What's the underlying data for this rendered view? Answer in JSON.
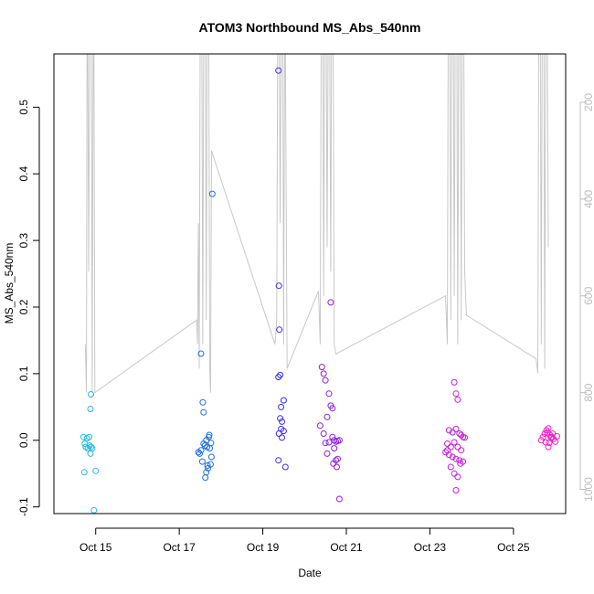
{
  "chart_data": {
    "type": "scatter",
    "title": "ATOM3 Northbound MS_Abs_540nm",
    "xlabel": "Date",
    "ylabel": "MS_Abs_540nm",
    "xlim": [
      "2017-10-14T00:00",
      "2017-10-26T06:00"
    ],
    "ylim": [
      -0.11,
      0.58
    ],
    "y2lim_reversed": [
      100,
      1050
    ],
    "x_ticks": [
      {
        "date": "2017-10-15",
        "label": "Oct 15"
      },
      {
        "date": "2017-10-17",
        "label": "Oct 17"
      },
      {
        "date": "2017-10-19",
        "label": "Oct 19"
      },
      {
        "date": "2017-10-21",
        "label": "Oct 21"
      },
      {
        "date": "2017-10-23",
        "label": "Oct 23"
      },
      {
        "date": "2017-10-25",
        "label": "Oct 25"
      }
    ],
    "y_ticks": [
      -0.1,
      0.0,
      0.1,
      0.2,
      0.3,
      0.4,
      0.5
    ],
    "y_tick_labels": [
      "-0.1",
      "0.0",
      "0.1",
      "0.2",
      "0.3",
      "0.4",
      "0.5"
    ],
    "y2_ticks": [
      200,
      400,
      600,
      800,
      1000
    ],
    "y2_tick_labels": [
      "200",
      "400",
      "600",
      "800",
      "1000"
    ],
    "grid": false,
    "colors": {
      "flight1": "#29b6e8",
      "flight2": "#1f6fe0",
      "flight3": "#3a2ee8",
      "flight4": "#8e1ee0",
      "flight5": "#c51ed8",
      "flight6": "#ef1ec8",
      "altitude_line": "#c8c8c8",
      "axis": "#000000",
      "right_axis": "#bdbdbd"
    },
    "series": [
      {
        "color_key": "flight1",
        "points": [
          [
            "2017-10-14T17:00",
            0.005
          ],
          [
            "2017-10-14T17:45",
            -0.005
          ],
          [
            "2017-10-14T18:15",
            -0.01
          ],
          [
            "2017-10-14T19:00",
            0.003
          ],
          [
            "2017-10-14T19:30",
            -0.012
          ],
          [
            "2017-10-14T20:15",
            0.005
          ],
          [
            "2017-10-14T20:30",
            -0.008
          ],
          [
            "2017-10-14T21:00",
            -0.02
          ],
          [
            "2017-10-14T21:15",
            -0.01
          ],
          [
            "2017-10-14T22:00",
            -0.012
          ],
          [
            "2017-10-14T17:30",
            -0.048
          ],
          [
            "2017-10-15T00:00",
            -0.046
          ],
          [
            "2017-10-14T21:00",
            0.047
          ],
          [
            "2017-10-14T21:15",
            0.069
          ],
          [
            "2017-10-14T23:00",
            -0.105
          ]
        ]
      },
      {
        "color_key": "flight2",
        "points": [
          [
            "2017-10-17T12:30",
            0.13
          ],
          [
            "2017-10-17T13:30",
            0.057
          ],
          [
            "2017-10-17T14:00",
            0.042
          ],
          [
            "2017-10-17T19:00",
            0.37
          ],
          [
            "2017-10-17T11:00",
            -0.018
          ],
          [
            "2017-10-17T11:45",
            -0.02
          ],
          [
            "2017-10-17T12:30",
            -0.015
          ],
          [
            "2017-10-17T13:15",
            -0.032
          ],
          [
            "2017-10-17T14:00",
            -0.005
          ],
          [
            "2017-10-17T14:45",
            -0.008
          ],
          [
            "2017-10-17T15:30",
            0.0
          ],
          [
            "2017-10-17T16:00",
            -0.01
          ],
          [
            "2017-10-17T16:30",
            -0.042
          ],
          [
            "2017-10-17T17:00",
            0.005
          ],
          [
            "2017-10-17T17:30",
            -0.012
          ],
          [
            "2017-10-17T18:00",
            -0.036
          ],
          [
            "2017-10-17T18:30",
            -0.025
          ],
          [
            "2017-10-17T15:00",
            -0.056
          ],
          [
            "2017-10-17T15:30",
            -0.048
          ],
          [
            "2017-10-17T16:15",
            -0.038
          ],
          [
            "2017-10-17T17:15",
            0.008
          ],
          [
            "2017-10-17T18:15",
            -0.004
          ]
        ]
      },
      {
        "color_key": "flight3",
        "points": [
          [
            "2017-10-19T09:00",
            0.555
          ],
          [
            "2017-10-19T09:15",
            0.232
          ],
          [
            "2017-10-19T09:30",
            0.166
          ],
          [
            "2017-10-19T10:00",
            0.098
          ],
          [
            "2017-10-19T09:00",
            0.095
          ],
          [
            "2017-10-19T12:00",
            0.06
          ],
          [
            "2017-10-19T10:30",
            0.05
          ],
          [
            "2017-10-19T10:00",
            0.033
          ],
          [
            "2017-10-19T11:00",
            0.028
          ],
          [
            "2017-10-19T10:30",
            0.017
          ],
          [
            "2017-10-19T12:00",
            0.014
          ],
          [
            "2017-10-19T09:15",
            0.01
          ],
          [
            "2017-10-19T11:00",
            0.004
          ],
          [
            "2017-10-19T09:00",
            -0.03
          ],
          [
            "2017-10-19T13:00",
            -0.04
          ]
        ]
      },
      {
        "color_key": "flight4",
        "points": [
          [
            "2017-10-20T15:00",
            0.207
          ],
          [
            "2017-10-20T10:00",
            0.11
          ],
          [
            "2017-10-20T11:00",
            0.1
          ],
          [
            "2017-10-20T12:00",
            0.09
          ],
          [
            "2017-10-20T14:00",
            0.07
          ],
          [
            "2017-10-20T15:00",
            0.052
          ],
          [
            "2017-10-20T16:00",
            0.048
          ],
          [
            "2017-10-20T13:00",
            0.035
          ],
          [
            "2017-10-20T09:00",
            0.022
          ],
          [
            "2017-10-20T11:00",
            0.01
          ],
          [
            "2017-10-20T16:00",
            0.005
          ],
          [
            "2017-10-20T17:00",
            0.0
          ],
          [
            "2017-10-20T18:00",
            -0.002
          ],
          [
            "2017-10-20T19:00",
            -0.001
          ],
          [
            "2017-10-20T20:00",
            0.0
          ],
          [
            "2017-10-20T14:00",
            -0.003
          ],
          [
            "2017-10-20T12:00",
            -0.004
          ],
          [
            "2017-10-20T17:00",
            -0.012
          ],
          [
            "2017-10-20T13:00",
            -0.02
          ],
          [
            "2017-10-20T18:00",
            -0.03
          ],
          [
            "2017-10-20T19:00",
            -0.028
          ],
          [
            "2017-10-20T16:30",
            -0.035
          ],
          [
            "2017-10-20T18:30",
            -0.04
          ],
          [
            "2017-10-20T20:00",
            -0.088
          ]
        ]
      },
      {
        "color_key": "flight5",
        "points": [
          [
            "2017-10-23T14:00",
            0.087
          ],
          [
            "2017-10-23T15:00",
            0.07
          ],
          [
            "2017-10-23T16:00",
            0.061
          ],
          [
            "2017-10-23T11:00",
            0.015
          ],
          [
            "2017-10-23T13:00",
            0.012
          ],
          [
            "2017-10-23T15:00",
            0.017
          ],
          [
            "2017-10-23T17:00",
            0.01
          ],
          [
            "2017-10-23T18:00",
            0.008
          ],
          [
            "2017-10-23T19:00",
            0.005
          ],
          [
            "2017-10-23T20:00",
            0.004
          ],
          [
            "2017-10-23T10:00",
            -0.005
          ],
          [
            "2017-10-23T12:00",
            -0.01
          ],
          [
            "2017-10-23T14:00",
            -0.003
          ],
          [
            "2017-10-23T16:00",
            -0.01
          ],
          [
            "2017-10-23T18:00",
            -0.015
          ],
          [
            "2017-10-23T09:00",
            -0.018
          ],
          [
            "2017-10-23T11:00",
            -0.022
          ],
          [
            "2017-10-23T13:00",
            -0.025
          ],
          [
            "2017-10-23T15:00",
            -0.028
          ],
          [
            "2017-10-23T17:00",
            -0.03
          ],
          [
            "2017-10-23T19:00",
            -0.032
          ],
          [
            "2017-10-23T12:00",
            -0.04
          ],
          [
            "2017-10-23T14:00",
            -0.05
          ],
          [
            "2017-10-23T16:00",
            -0.055
          ],
          [
            "2017-10-23T15:00",
            -0.075
          ],
          [
            "2017-10-23T10:00",
            -0.015
          ],
          [
            "2017-10-23T17:30",
            -0.035
          ]
        ]
      },
      {
        "color_key": "flight6",
        "points": [
          [
            "2017-10-25T16:00",
            0.0
          ],
          [
            "2017-10-25T17:00",
            0.005
          ],
          [
            "2017-10-25T18:00",
            0.01
          ],
          [
            "2017-10-25T19:00",
            0.015
          ],
          [
            "2017-10-25T20:00",
            0.018
          ],
          [
            "2017-10-25T21:00",
            0.008
          ],
          [
            "2017-10-25T22:00",
            0.005
          ],
          [
            "2017-10-25T23:00",
            0.002
          ],
          [
            "2017-10-26T00:00",
            -0.002
          ],
          [
            "2017-10-25T18:30",
            -0.003
          ],
          [
            "2017-10-25T19:30",
            0.012
          ],
          [
            "2017-10-25T20:30",
            -0.004
          ],
          [
            "2017-10-25T21:30",
            0.004
          ],
          [
            "2017-10-25T22:30",
            0.01
          ],
          [
            "2017-10-25T20:00",
            -0.01
          ],
          [
            "2017-10-26T01:00",
            0.006
          ]
        ]
      }
    ],
    "altitude_line": {
      "axis": "right",
      "points": [
        [
          "2017-10-14T18:00",
          700
        ],
        [
          "2017-10-14T18:40",
          800
        ],
        [
          "2017-10-14T19:00",
          100
        ],
        [
          "2017-10-14T19:30",
          100
        ],
        [
          "2017-10-14T20:00",
          550
        ],
        [
          "2017-10-14T20:30",
          100
        ],
        [
          "2017-10-14T21:30",
          100
        ],
        [
          "2017-10-14T22:00",
          800
        ],
        [
          "2017-10-14T22:30",
          100
        ],
        [
          "2017-10-14T23:00",
          100
        ],
        [
          "2017-10-14T23:30",
          800
        ],
        [
          "2017-10-17T10:00",
          650
        ],
        [
          "2017-10-17T10:30",
          700
        ],
        [
          "2017-10-17T11:00",
          450
        ],
        [
          "2017-10-17T11:30",
          750
        ],
        [
          "2017-10-17T12:00",
          100
        ],
        [
          "2017-10-17T13:00",
          100
        ],
        [
          "2017-10-17T13:30",
          700
        ],
        [
          "2017-10-17T14:00",
          100
        ],
        [
          "2017-10-17T15:00",
          100
        ],
        [
          "2017-10-17T15:30",
          650
        ],
        [
          "2017-10-17T16:00",
          100
        ],
        [
          "2017-10-17T17:00",
          100
        ],
        [
          "2017-10-17T17:30",
          750
        ],
        [
          "2017-10-17T18:00",
          800
        ],
        [
          "2017-10-17T18:30",
          300
        ],
        [
          "2017-10-19T07:00",
          700
        ],
        [
          "2017-10-19T08:00",
          650
        ],
        [
          "2017-10-19T08:30",
          100
        ],
        [
          "2017-10-19T09:30",
          100
        ],
        [
          "2017-10-19T10:00",
          450
        ],
        [
          "2017-10-19T10:30",
          100
        ],
        [
          "2017-10-19T11:30",
          100
        ],
        [
          "2017-10-19T12:00",
          700
        ],
        [
          "2017-10-19T12:30",
          100
        ],
        [
          "2017-10-19T13:00",
          100
        ],
        [
          "2017-10-19T14:00",
          750
        ],
        [
          "2017-10-20T08:00",
          590
        ],
        [
          "2017-10-20T09:00",
          700
        ],
        [
          "2017-10-20T09:30",
          100
        ],
        [
          "2017-10-20T10:30",
          100
        ],
        [
          "2017-10-20T11:00",
          600
        ],
        [
          "2017-10-20T11:30",
          100
        ],
        [
          "2017-10-20T12:30",
          100
        ],
        [
          "2017-10-20T13:00",
          500
        ],
        [
          "2017-10-20T13:30",
          100
        ],
        [
          "2017-10-20T14:30",
          100
        ],
        [
          "2017-10-20T15:00",
          550
        ],
        [
          "2017-10-20T15:30",
          100
        ],
        [
          "2017-10-20T16:30",
          100
        ],
        [
          "2017-10-20T17:00",
          700
        ],
        [
          "2017-10-20T18:00",
          720
        ],
        [
          "2017-10-23T09:00",
          600
        ],
        [
          "2017-10-23T10:00",
          700
        ],
        [
          "2017-10-23T10:30",
          100
        ],
        [
          "2017-10-23T11:30",
          100
        ],
        [
          "2017-10-23T12:00",
          650
        ],
        [
          "2017-10-23T12:30",
          100
        ],
        [
          "2017-10-23T13:30",
          100
        ],
        [
          "2017-10-23T14:00",
          600
        ],
        [
          "2017-10-23T14:30",
          100
        ],
        [
          "2017-10-23T15:30",
          100
        ],
        [
          "2017-10-23T16:00",
          700
        ],
        [
          "2017-10-23T16:30",
          100
        ],
        [
          "2017-10-23T17:30",
          100
        ],
        [
          "2017-10-23T18:00",
          650
        ],
        [
          "2017-10-23T18:30",
          100
        ],
        [
          "2017-10-23T19:30",
          100
        ],
        [
          "2017-10-23T20:00",
          550
        ],
        [
          "2017-10-23T21:00",
          640
        ],
        [
          "2017-10-25T13:00",
          730
        ],
        [
          "2017-10-25T14:00",
          760
        ],
        [
          "2017-10-25T14:30",
          100
        ],
        [
          "2017-10-25T15:30",
          100
        ],
        [
          "2017-10-25T16:00",
          700
        ],
        [
          "2017-10-25T16:30",
          100
        ],
        [
          "2017-10-25T17:30",
          100
        ],
        [
          "2017-10-25T18:00",
          750
        ],
        [
          "2017-10-25T18:30",
          100
        ],
        [
          "2017-10-25T19:30",
          100
        ],
        [
          "2017-10-25T20:00",
          500
        ]
      ]
    }
  }
}
